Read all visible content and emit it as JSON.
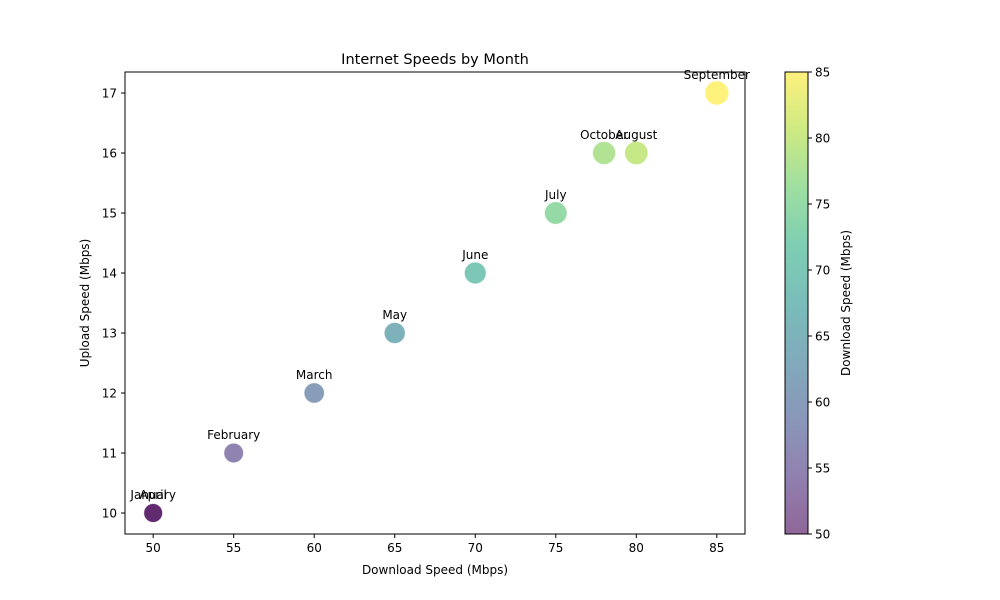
{
  "chart_data": {
    "type": "scatter",
    "title": "Internet Speeds by Month",
    "xlabel": "Download Speed (Mbps)",
    "ylabel": "Upload Speed (Mbps)",
    "xlim": [
      48.25,
      86.75
    ],
    "ylim": [
      9.65,
      17.35
    ],
    "xticks": [
      50,
      55,
      60,
      65,
      70,
      75,
      80,
      85
    ],
    "yticks": [
      10,
      11,
      12,
      13,
      14,
      15,
      16,
      17
    ],
    "points": [
      {
        "label": "January",
        "x": 50,
        "y": 10
      },
      {
        "label": "February",
        "x": 55,
        "y": 11
      },
      {
        "label": "March",
        "x": 60,
        "y": 12
      },
      {
        "label": "April",
        "x": 50,
        "y": 10
      },
      {
        "label": "May",
        "x": 65,
        "y": 13
      },
      {
        "label": "June",
        "x": 70,
        "y": 14
      },
      {
        "label": "July",
        "x": 75,
        "y": 15
      },
      {
        "label": "August",
        "x": 80,
        "y": 16
      },
      {
        "label": "September",
        "x": 85,
        "y": 17
      },
      {
        "label": "October",
        "x": 78,
        "y": 16
      }
    ],
    "color_by": "x",
    "colormap": "viridis",
    "point_alpha": 0.6,
    "colorbar": {
      "label": "Download Speed (Mbps)",
      "range": [
        50,
        85
      ],
      "ticks": [
        50,
        55,
        60,
        65,
        70,
        75,
        80,
        85
      ]
    },
    "grid": false,
    "legend": "none"
  }
}
